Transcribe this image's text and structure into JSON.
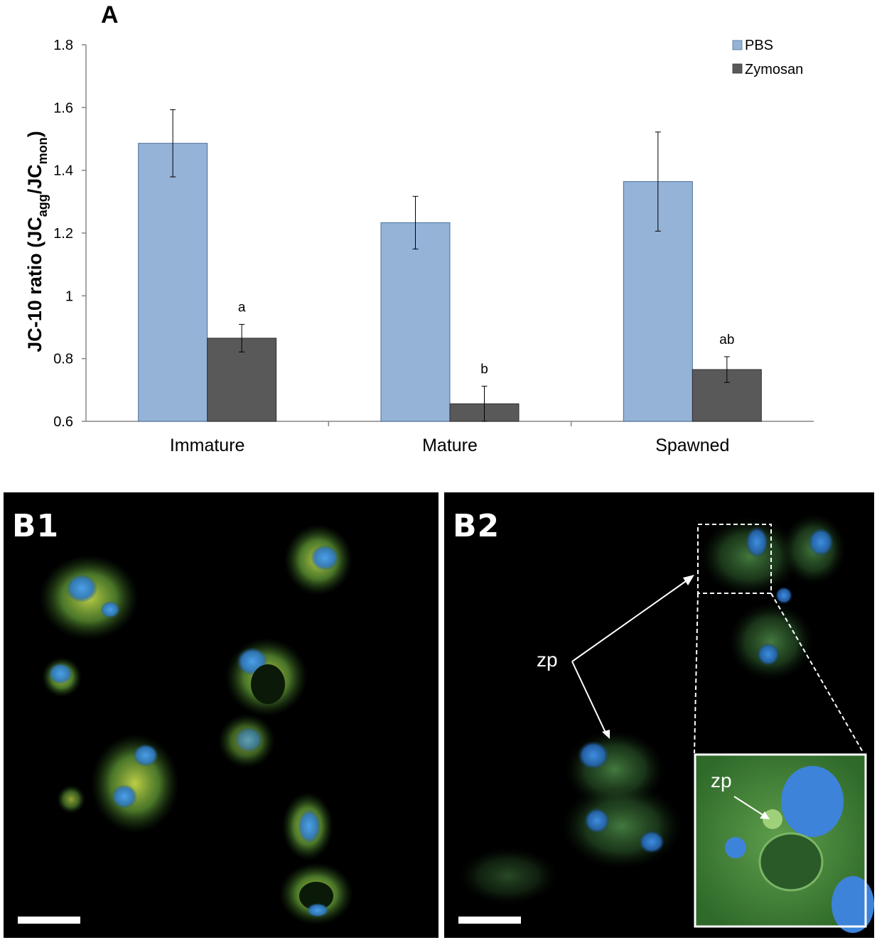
{
  "panel_a_label": "A",
  "chart_data": {
    "type": "bar",
    "categories": [
      "Immature",
      "Mature",
      "Spawned"
    ],
    "series": [
      {
        "name": "PBS",
        "color": "#95b3d7",
        "values": [
          1.486,
          1.233,
          1.364
        ],
        "errors": [
          0.107,
          0.084,
          0.158
        ]
      },
      {
        "name": "Zymosan",
        "color": "#595959",
        "values": [
          0.865,
          0.656,
          0.765
        ],
        "errors": [
          0.044,
          0.056,
          0.041
        ]
      }
    ],
    "significance_labels": [
      "a",
      "b",
      "ab"
    ],
    "ylabel_main": "JC-10 ratio  (JC",
    "ylabel_sub1": "agg",
    "ylabel_mid": "/JC",
    "ylabel_sub2": "mon",
    "ylabel_end": ")",
    "ylim": [
      0.6,
      1.8
    ],
    "yticks": [
      0.6,
      0.8,
      1,
      1.2,
      1.4,
      1.6,
      1.8
    ],
    "ytick_labels": [
      "0.6",
      "0.8",
      "1",
      "1.2",
      "1.4",
      "1.6",
      "1.8"
    ],
    "legend_position": "top-right",
    "grid": false
  },
  "panel_b1": {
    "label": "B1"
  },
  "panel_b2": {
    "label": "B2",
    "arrow_label": "zp",
    "inset_arrow_label": "zp"
  }
}
